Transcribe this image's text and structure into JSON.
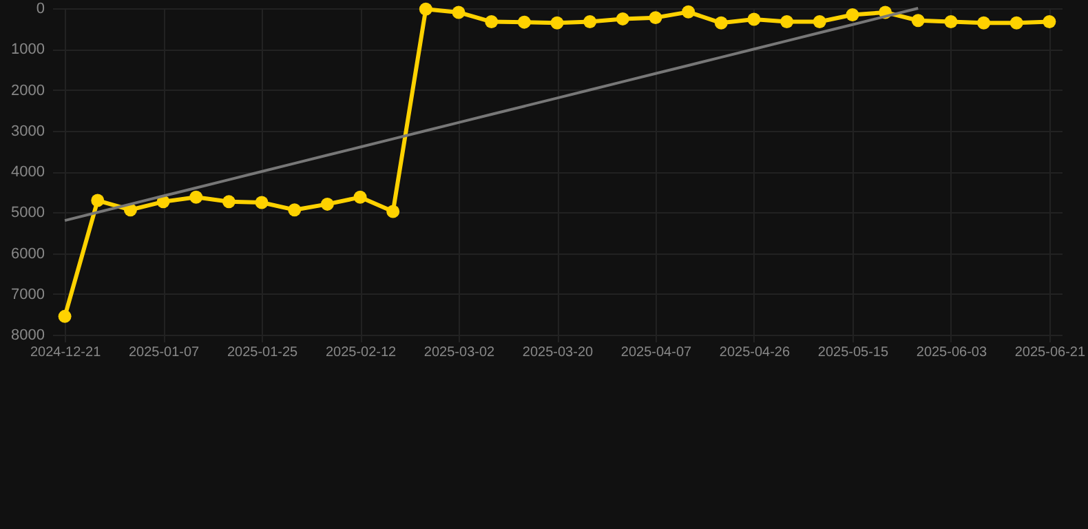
{
  "chart_data": {
    "type": "line",
    "categories": [
      "2024-12-21",
      null,
      null,
      "2025-01-07",
      null,
      null,
      "2025-01-25",
      null,
      null,
      "2025-02-12",
      null,
      null,
      "2025-03-02",
      null,
      null,
      "2025-03-20",
      null,
      null,
      "2025-04-07",
      null,
      null,
      "2025-04-26",
      null,
      null,
      "2025-05-15",
      null,
      null,
      "2025-06-03",
      null,
      null,
      "2025-06-21"
    ],
    "ylim": [
      8000,
      0
    ],
    "yticks": [
      0,
      1000,
      2000,
      3000,
      4000,
      5000,
      6000,
      7000,
      8000
    ],
    "grid": true,
    "marker": "circle",
    "series": [
      {
        "color": "#ffd200",
        "values": [
          7550,
          4710,
          4940,
          4740,
          4630,
          4740,
          4760,
          4940,
          4800,
          4630,
          4980,
          20,
          100,
          330,
          340,
          360,
          330,
          260,
          230,
          90,
          360,
          270,
          330,
          330,
          160,
          100,
          300,
          330,
          360,
          360,
          330
        ]
      },
      {
        "type": "line",
        "marker": "none",
        "color": "#777777",
        "values": [
          5200,
          5000,
          4800,
          4600,
          4400,
          4200,
          4000,
          3800,
          3600,
          3400,
          3200,
          3000,
          2800,
          2600,
          2400,
          2200,
          2000,
          1800,
          1600,
          1400,
          1200,
          1000,
          800,
          600,
          400,
          200,
          0,
          null,
          null,
          null,
          null
        ]
      }
    ]
  }
}
